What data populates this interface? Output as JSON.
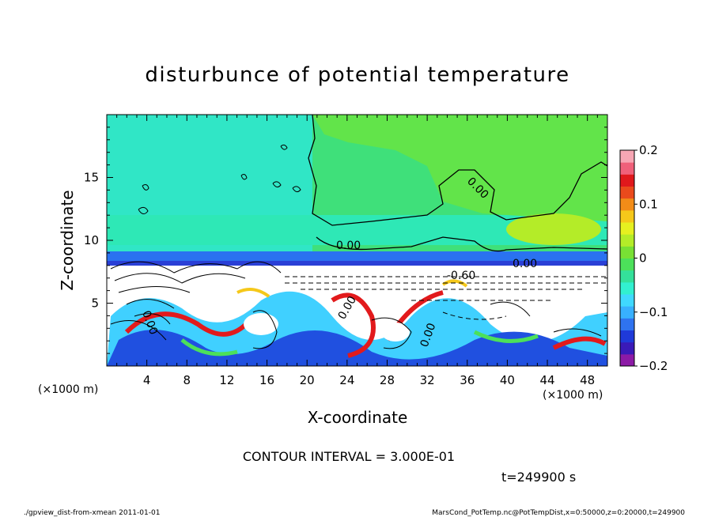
{
  "chart_data": {
    "type": "heatmap",
    "title": "disturbunce of potential temperature",
    "xlabel": "X-coordinate",
    "ylabel": "Z-coordinate",
    "xunit": "(×1000 m)",
    "yunit": "(×1000 m)",
    "xlim": [
      0,
      50
    ],
    "ylim": [
      0,
      20
    ],
    "x_ticks": [
      "4",
      "8",
      "12",
      "16",
      "20",
      "24",
      "28",
      "32",
      "36",
      "40",
      "44",
      "48"
    ],
    "y_ticks": [
      "5",
      "10",
      "15"
    ],
    "colorbar": {
      "range": [
        -0.2,
        0.2
      ],
      "tick_labels": [
        "0.2",
        "0.1",
        "0",
        "−0.1",
        "−0.2"
      ],
      "colors": [
        "#8c1aa6",
        "#3a1ab8",
        "#1f3ad9",
        "#2f73f0",
        "#38b0ff",
        "#40d9ff",
        "#32f0d0",
        "#34e09a",
        "#4ce05a",
        "#78e034",
        "#b4ec28",
        "#e6f020",
        "#f5c81a",
        "#f28c18",
        "#ea4a1c",
        "#e0181c",
        "#f0607a",
        "#f7a6b4"
      ]
    },
    "contour_labels": [
      "0.00",
      "0.00",
      "0.00",
      "0.00",
      "0.00",
      "-0.60",
      "0.00"
    ],
    "contour_interval": "CONTOUR INTERVAL = 3.000E-01",
    "time": "t=249900 s"
  },
  "footer": {
    "left": "./gpview_dist-from-xmean  2011-01-01",
    "right": "MarsCond_PotTemp.nc@PotTempDist,x=0:50000,z=0:20000,t=249900"
  }
}
